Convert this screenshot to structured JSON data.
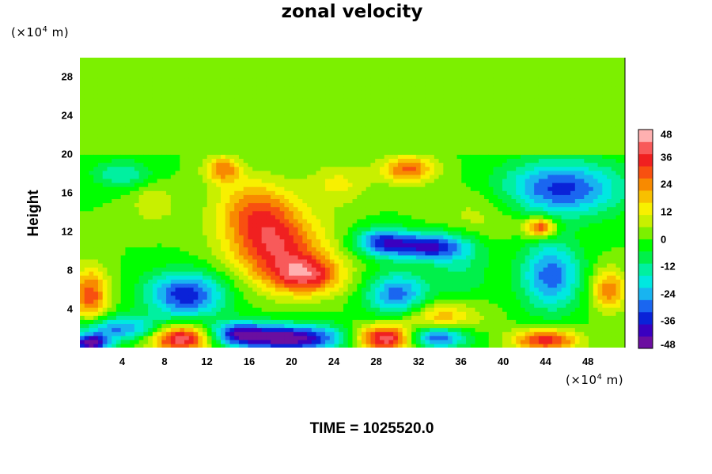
{
  "chart_data": {
    "type": "heatmap",
    "title": "zonal velocity",
    "ylabel": "Height",
    "y_unit": "(×10",
    "x_unit": "(×10",
    "unit_exp": "4",
    "unit_suffix": " m)",
    "xlim": [
      0,
      51.5
    ],
    "ylim": [
      0,
      30
    ],
    "x_ticks": [
      4,
      8,
      12,
      16,
      20,
      24,
      28,
      32,
      36,
      40,
      44,
      48
    ],
    "y_ticks": [
      4,
      8,
      12,
      16,
      20,
      24,
      28
    ],
    "colorbar": {
      "range": [
        -48,
        48
      ],
      "ticks": [
        48,
        36,
        24,
        12,
        0,
        -12,
        -24,
        -36,
        -48
      ],
      "colors": [
        "#6b0ea0",
        "#3a00c0",
        "#0a22d8",
        "#1a66f0",
        "#18b4f0",
        "#00e8e0",
        "#00f0a0",
        "#00f04a",
        "#00ff00",
        "#7cf000",
        "#c8f000",
        "#f8f000",
        "#f8c000",
        "#f88a00",
        "#f85010",
        "#f02020",
        "#f85a5a",
        "#ffb0b0"
      ]
    },
    "background_value": 0,
    "features": [
      {
        "x": 18.5,
        "y": 10.5,
        "sx": 3.2,
        "sy": 2.6,
        "v": 34
      },
      {
        "x": 16.5,
        "y": 14.5,
        "sx": 2.6,
        "sy": 2.2,
        "v": 22
      },
      {
        "x": 21.5,
        "y": 7.5,
        "sx": 2.4,
        "sy": 1.4,
        "v": 32
      },
      {
        "x": 20.0,
        "y": 1.0,
        "sx": 3.5,
        "sy": 1.0,
        "v": -46
      },
      {
        "x": 15.0,
        "y": 1.5,
        "sx": 2.0,
        "sy": 0.9,
        "v": -30
      },
      {
        "x": 9.5,
        "y": 1.0,
        "sx": 2.0,
        "sy": 1.0,
        "v": 44
      },
      {
        "x": 29.0,
        "y": 1.0,
        "sx": 2.0,
        "sy": 1.0,
        "v": 46
      },
      {
        "x": 33.5,
        "y": 1.2,
        "sx": 2.2,
        "sy": 0.9,
        "v": -38
      },
      {
        "x": 44.0,
        "y": 0.8,
        "sx": 2.2,
        "sy": 0.8,
        "v": 36
      },
      {
        "x": 1.0,
        "y": 0.5,
        "sx": 1.2,
        "sy": 0.6,
        "v": -46
      },
      {
        "x": 10.0,
        "y": 5.5,
        "sx": 2.6,
        "sy": 1.7,
        "v": -36
      },
      {
        "x": 3.5,
        "y": 2.0,
        "sx": 3.0,
        "sy": 0.9,
        "v": -28
      },
      {
        "x": 1.0,
        "y": 5.5,
        "sx": 1.2,
        "sy": 2.0,
        "v": 30
      },
      {
        "x": 33.0,
        "y": 10.5,
        "sx": 2.6,
        "sy": 1.0,
        "v": -38
      },
      {
        "x": 28.5,
        "y": 11.0,
        "sx": 1.8,
        "sy": 1.0,
        "v": -30
      },
      {
        "x": 30.0,
        "y": 5.5,
        "sx": 2.0,
        "sy": 1.6,
        "v": -30
      },
      {
        "x": 34.0,
        "y": 3.0,
        "sx": 2.5,
        "sy": 1.2,
        "v": 22
      },
      {
        "x": 45.5,
        "y": 16.5,
        "sx": 4.0,
        "sy": 2.0,
        "v": -34
      },
      {
        "x": 44.5,
        "y": 7.5,
        "sx": 2.0,
        "sy": 2.5,
        "v": -30
      },
      {
        "x": 43.5,
        "y": 12.5,
        "sx": 1.0,
        "sy": 0.7,
        "v": 36
      },
      {
        "x": 31.0,
        "y": 18.5,
        "sx": 1.8,
        "sy": 1.0,
        "v": 28
      },
      {
        "x": 13.5,
        "y": 18.5,
        "sx": 1.2,
        "sy": 1.0,
        "v": 24
      },
      {
        "x": 4.0,
        "y": 18.0,
        "sx": 2.0,
        "sy": 1.0,
        "v": -16
      },
      {
        "x": 7.0,
        "y": 15.0,
        "sx": 1.5,
        "sy": 1.5,
        "v": 10
      },
      {
        "x": 50.0,
        "y": 6.0,
        "sx": 1.2,
        "sy": 1.5,
        "v": 26
      },
      {
        "x": 38.0,
        "y": 14.0,
        "sx": 3.0,
        "sy": 2.0,
        "v": 8
      },
      {
        "x": 24.5,
        "y": 17.0,
        "sx": 2.0,
        "sy": 1.5,
        "v": 12
      },
      {
        "x": 36.0,
        "y": 8.0,
        "sx": 2.0,
        "sy": 2.0,
        "v": -10
      }
    ],
    "upper_boundary": 20,
    "upper_value": 0
  },
  "time_label": "TIME = 1025520.0"
}
